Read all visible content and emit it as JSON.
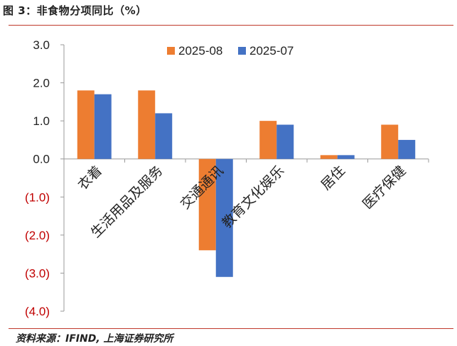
{
  "header": {
    "title": "图 3：非食物分项同比（%）"
  },
  "footer": {
    "source": "资料来源：IFIND, 上海证券研究所"
  },
  "colors": {
    "series1": "#ed7d31",
    "series2": "#4472c4",
    "negative_tick": "#c00000",
    "rule": "#c0392b"
  },
  "chart_data": {
    "type": "bar",
    "categories": [
      "衣着",
      "生活用品及服务",
      "交通通讯",
      "教育文化娱乐",
      "居住",
      "医疗保健"
    ],
    "series": [
      {
        "name": "2025-08",
        "values": [
          1.8,
          1.8,
          -2.4,
          1.0,
          0.1,
          0.9
        ]
      },
      {
        "name": "2025-07",
        "values": [
          1.7,
          1.2,
          -3.1,
          0.9,
          0.1,
          0.5
        ]
      }
    ],
    "yticks": [
      "3.0",
      "2.0",
      "1.0",
      "0.0",
      "(1.0)",
      "(2.0)",
      "(3.0)",
      "(4.0)"
    ],
    "ytick_values": [
      3,
      2,
      1,
      0,
      -1,
      -2,
      -3,
      -4
    ],
    "ylim": [
      -4,
      3
    ],
    "grid": false,
    "legend_position": "top-center"
  }
}
